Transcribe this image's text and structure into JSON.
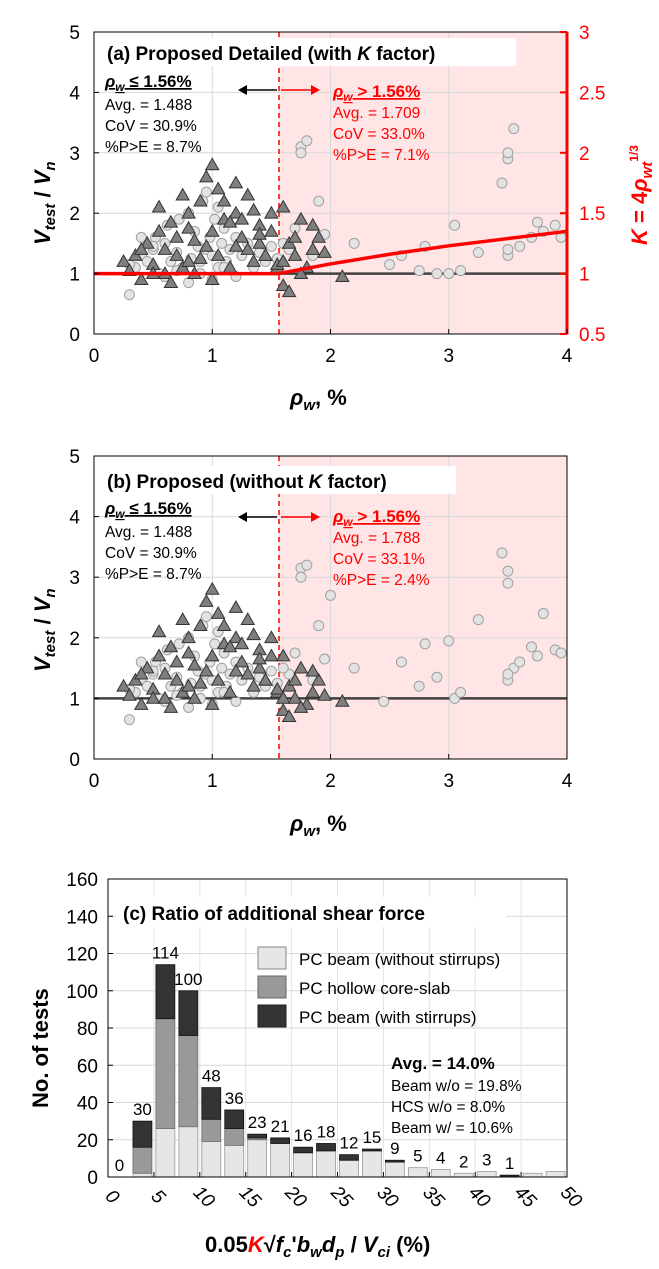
{
  "chart_data": [
    {
      "type": "scatter",
      "title": "(a) Proposed Detailed (with K factor)",
      "title_parts": {
        "prefix": "(a) Proposed Detailed (with ",
        "italic": "K",
        "suffix": " factor)"
      },
      "xlabel": "ρw, %",
      "ylabel": "Vtest / Vn",
      "y2label": "K = 4ρwt1/3",
      "xlim": [
        0,
        4
      ],
      "ylim": [
        0,
        5
      ],
      "y2lim": [
        0.5,
        3
      ],
      "xticks": [
        "0",
        "1",
        "2",
        "3",
        "4"
      ],
      "yticks": [
        "0",
        "1",
        "2",
        "3",
        "4",
        "5"
      ],
      "y2ticks": [
        "0.5",
        "1",
        "1.5",
        "2",
        "2.5",
        "3"
      ],
      "threshold_x": 1.56,
      "left_group": {
        "header": "ρw ≤ 1.56%",
        "avg": "Avg. = 1.488",
        "cov": "CoV = 30.9%",
        "pe": "%P>E = 8.7%"
      },
      "right_group": {
        "header": "ρw > 1.56%",
        "avg": "Avg. = 1.709",
        "cov": "CoV = 33.0%",
        "pe": "%P>E = 7.1%"
      },
      "k_curve": {
        "x": [
          0,
          1.56,
          2.0,
          2.5,
          3.0,
          3.5,
          4.0
        ],
        "y": [
          1,
          1,
          1.08,
          1.16,
          1.23,
          1.29,
          1.35
        ]
      },
      "series": [
        {
          "name": "PC beam (without stirrups)",
          "marker": "circle",
          "x": [
            0.3,
            0.35,
            0.4,
            0.45,
            0.5,
            0.52,
            0.55,
            0.6,
            0.62,
            0.65,
            0.7,
            0.72,
            0.75,
            0.8,
            0.82,
            0.85,
            0.88,
            0.9,
            0.92,
            0.95,
            0.98,
            1.0,
            1.02,
            1.05,
            1.08,
            1.1,
            1.12,
            1.15,
            1.2,
            1.25,
            1.3,
            1.35,
            1.4,
            1.45,
            1.5,
            1.55,
            0.6,
            0.7,
            0.8,
            0.9,
            1.0,
            1.1,
            1.2,
            0.4,
            0.5,
            0.3,
            0.95,
            1.05,
            1.75,
            1.8,
            1.9,
            1.95,
            1.7,
            1.65,
            1.6,
            1.75,
            1.85,
            2.2,
            2.5,
            2.6,
            2.75,
            2.8,
            2.9,
            3.0,
            3.05,
            3.1,
            3.25,
            3.45,
            3.5,
            3.5,
            3.55,
            3.6,
            3.7,
            3.75,
            3.8,
            3.9,
            3.95,
            3.5,
            3.5
          ],
          "y": [
            0.65,
            1.1,
            1.3,
            1.2,
            1.4,
            1.6,
            1.0,
            1.5,
            1.8,
            1.2,
            1.35,
            1.9,
            1.1,
            2.0,
            1.25,
            1.7,
            1.45,
            1.2,
            2.2,
            1.4,
            1.6,
            1.3,
            1.9,
            1.1,
            1.5,
            1.75,
            1.2,
            1.4,
            1.6,
            1.3,
            1.5,
            1.1,
            1.35,
            1.2,
            1.45,
            1.25,
            0.95,
            1.05,
            0.85,
            1.0,
            0.9,
            1.1,
            0.95,
            1.6,
            1.45,
            1.15,
            2.35,
            2.1,
            3.1,
            3.2,
            2.2,
            1.65,
            1.75,
            1.4,
            1.5,
            3.0,
            1.3,
            1.5,
            1.15,
            1.3,
            1.05,
            1.45,
            1.0,
            1.0,
            1.8,
            1.05,
            1.35,
            2.5,
            2.9,
            3.0,
            3.4,
            1.45,
            1.6,
            1.85,
            1.7,
            1.8,
            1.6,
            1.3,
            1.4
          ]
        },
        {
          "name": "PC beam (with stirrups)",
          "marker": "triangle",
          "x": [
            0.25,
            0.3,
            0.35,
            0.4,
            0.45,
            0.5,
            0.55,
            0.6,
            0.65,
            0.7,
            0.75,
            0.8,
            0.85,
            0.9,
            0.95,
            1.0,
            1.05,
            1.1,
            1.15,
            1.2,
            1.25,
            1.3,
            1.35,
            1.4,
            1.45,
            1.5,
            1.55,
            1.6,
            1.65,
            1.7,
            1.75,
            1.8,
            1.85,
            1.9,
            1.95,
            2.1,
            0.5,
            0.6,
            0.7,
            0.8,
            0.9,
            1.0,
            1.1,
            1.2,
            1.3,
            1.4,
            1.5,
            1.6,
            1.7,
            0.55,
            0.75,
            0.95,
            1.15,
            1.35,
            1.55,
            1.75,
            0.65,
            0.85,
            1.05,
            1.25,
            1.45,
            1.65,
            0.4,
            0.8,
            1.0,
            1.2,
            1.4,
            1.6,
            1.85
          ],
          "y": [
            1.2,
            1.05,
            1.3,
            0.9,
            1.5,
            1.15,
            1.7,
            1.0,
            1.85,
            1.3,
            1.1,
            2.0,
            1.55,
            1.25,
            2.6,
            1.7,
            1.3,
            2.2,
            1.1,
            2.5,
            1.6,
            2.3,
            1.2,
            1.8,
            1.3,
            2.0,
            1.1,
            2.1,
            1.5,
            1.3,
            1.9,
            1.1,
            1.4,
            1.6,
            1.35,
            0.95,
            1.0,
            1.4,
            1.6,
            1.75,
            2.2,
            2.8,
            1.9,
            2.0,
            1.4,
            1.5,
            1.7,
            0.8,
            1.6,
            2.1,
            2.3,
            1.45,
            1.85,
            2.05,
            1.15,
            1.0,
            0.85,
            1.0,
            2.4,
            1.9,
            1.3,
            0.7,
            1.4,
            1.2,
            0.9,
            1.45,
            1.65,
            1.2,
            1.8
          ]
        }
      ]
    },
    {
      "type": "scatter",
      "title": "(b) Proposed (without K factor)",
      "title_parts": {
        "prefix": "(b) Proposed (without ",
        "italic": "K",
        "suffix": " factor)"
      },
      "xlabel": "ρw, %",
      "ylabel": "Vtest / Vn",
      "xlim": [
        0,
        4
      ],
      "ylim": [
        0,
        5
      ],
      "xticks": [
        "0",
        "1",
        "2",
        "3",
        "4"
      ],
      "yticks": [
        "0",
        "1",
        "2",
        "3",
        "4",
        "5"
      ],
      "threshold_x": 1.56,
      "left_group": {
        "header": "ρw ≤ 1.56%",
        "avg": "Avg. = 1.488",
        "cov": "CoV = 30.9%",
        "pe": "%P>E = 8.7%"
      },
      "right_group": {
        "header": "ρw > 1.56%",
        "avg": "Avg. = 1.788",
        "cov": "CoV = 33.1%",
        "pe": "%P>E = 2.4%"
      },
      "series": [
        {
          "name": "PC beam (without stirrups)",
          "marker": "circle",
          "x": [
            0.3,
            0.35,
            0.4,
            0.45,
            0.5,
            0.52,
            0.55,
            0.6,
            0.62,
            0.65,
            0.7,
            0.72,
            0.75,
            0.8,
            0.82,
            0.85,
            0.88,
            0.9,
            0.92,
            0.95,
            0.98,
            1.0,
            1.02,
            1.05,
            1.08,
            1.1,
            1.12,
            1.15,
            1.2,
            1.25,
            1.3,
            1.35,
            1.4,
            1.45,
            1.5,
            1.55,
            0.6,
            0.7,
            0.8,
            0.9,
            1.0,
            1.1,
            1.2,
            0.4,
            0.5,
            0.3,
            0.95,
            1.05,
            1.75,
            1.8,
            1.9,
            1.95,
            1.7,
            1.65,
            1.6,
            1.75,
            1.85,
            2.2,
            2.45,
            2.6,
            2.75,
            2.8,
            2.9,
            3.0,
            3.05,
            3.1,
            3.25,
            3.45,
            3.5,
            3.5,
            3.55,
            3.6,
            3.7,
            3.75,
            3.8,
            3.9,
            3.95,
            3.5,
            3.5,
            2.0
          ],
          "y": [
            0.65,
            1.1,
            1.3,
            1.2,
            1.4,
            1.6,
            1.0,
            1.5,
            1.8,
            1.2,
            1.35,
            1.9,
            1.1,
            2.0,
            1.25,
            1.7,
            1.45,
            1.2,
            2.2,
            1.4,
            1.6,
            1.3,
            1.9,
            1.1,
            1.5,
            1.75,
            1.2,
            1.4,
            1.6,
            1.3,
            1.5,
            1.1,
            1.35,
            1.2,
            1.45,
            1.25,
            0.95,
            1.05,
            0.85,
            1.0,
            0.9,
            1.1,
            0.95,
            1.6,
            1.45,
            1.15,
            2.35,
            2.1,
            3.15,
            3.2,
            2.2,
            1.65,
            1.75,
            1.4,
            1.5,
            3.0,
            1.3,
            1.5,
            0.95,
            1.6,
            1.2,
            1.9,
            1.35,
            1.95,
            1.0,
            1.1,
            2.3,
            3.4,
            2.9,
            3.1,
            1.5,
            1.6,
            1.85,
            1.7,
            2.4,
            1.8,
            1.75,
            1.3,
            1.4,
            2.7
          ]
        },
        {
          "name": "PC beam (with stirrups)",
          "marker": "triangle",
          "x": [
            0.25,
            0.3,
            0.35,
            0.4,
            0.45,
            0.5,
            0.55,
            0.6,
            0.65,
            0.7,
            0.75,
            0.8,
            0.85,
            0.9,
            0.95,
            1.0,
            1.05,
            1.1,
            1.15,
            1.2,
            1.25,
            1.3,
            1.35,
            1.4,
            1.45,
            1.5,
            1.55,
            1.6,
            1.65,
            1.7,
            1.75,
            1.8,
            1.85,
            1.9,
            1.95,
            2.1,
            0.5,
            0.6,
            0.7,
            0.8,
            0.9,
            1.0,
            1.1,
            1.2,
            1.3,
            1.4,
            1.5,
            1.6,
            1.7,
            0.55,
            0.75,
            0.95,
            1.15,
            1.35,
            1.55,
            1.75,
            0.65,
            0.85,
            1.05,
            1.25,
            1.45,
            1.65,
            0.4,
            0.8,
            1.0,
            1.2,
            1.4,
            1.6,
            1.85
          ],
          "y": [
            1.2,
            1.05,
            1.3,
            0.9,
            1.5,
            1.15,
            1.7,
            1.0,
            1.85,
            1.3,
            1.1,
            2.0,
            1.55,
            1.25,
            2.6,
            1.7,
            1.3,
            2.2,
            1.1,
            2.5,
            1.6,
            2.3,
            1.2,
            1.8,
            1.3,
            2.0,
            1.1,
            1.7,
            1.2,
            1.0,
            1.5,
            0.9,
            1.1,
            1.3,
            1.05,
            0.95,
            1.0,
            1.4,
            1.6,
            1.75,
            2.2,
            2.8,
            1.9,
            2.0,
            1.4,
            1.5,
            1.7,
            0.8,
            1.3,
            2.1,
            2.3,
            1.45,
            1.85,
            2.05,
            1.15,
            0.85,
            0.85,
            1.0,
            2.4,
            1.9,
            1.3,
            0.7,
            1.4,
            1.2,
            0.9,
            1.45,
            1.65,
            1.0,
            1.45
          ]
        }
      ]
    },
    {
      "type": "bar",
      "stacked": true,
      "title": "(c) Ratio of additional shear force",
      "xlabel": "0.05K√fc'bwdp / Vci (%)",
      "ylabel": "No. of tests",
      "xlim": [
        0,
        50
      ],
      "ylim": [
        0,
        160
      ],
      "xticks": [
        "0",
        "5",
        "10",
        "15",
        "20",
        "25",
        "30",
        "35",
        "40",
        "45",
        "50"
      ],
      "yticks": [
        "0",
        "20",
        "40",
        "60",
        "80",
        "100",
        "120",
        "140",
        "160"
      ],
      "bin_start": [
        0,
        2.5,
        5,
        7.5,
        10,
        12.5,
        15,
        17.5,
        20,
        22.5,
        25,
        27.5,
        30,
        32.5,
        35,
        37.5,
        40,
        42.5,
        45,
        47.5
      ],
      "bin_width": 2.5,
      "totals": [
        0,
        30,
        114,
        100,
        48,
        36,
        23,
        21,
        16,
        18,
        12,
        15,
        9,
        5,
        4,
        2,
        3,
        1,
        null,
        null
      ],
      "total_labels": [
        "0",
        "30",
        "114",
        "100",
        "48",
        "36",
        "23",
        "21",
        "16",
        "18",
        "12",
        "15",
        "9",
        "5",
        "4",
        "2",
        "3",
        "1",
        "",
        ""
      ],
      "series": [
        {
          "name": "PC beam (without stirrups)",
          "color": "#e6e6e6",
          "values": [
            0,
            2,
            26,
            27,
            19,
            17,
            20,
            18,
            13,
            14,
            9,
            14,
            8,
            5,
            4,
            2,
            3,
            0,
            2,
            3
          ]
        },
        {
          "name": "PC hollow core-slab",
          "color": "#999999",
          "values": [
            0,
            14,
            59,
            49,
            12,
            9,
            1,
            0,
            0,
            0,
            0,
            0,
            0,
            0,
            0,
            0,
            0,
            0,
            0,
            0
          ]
        },
        {
          "name": "PC beam (with stirrups)",
          "color": "#333333",
          "values": [
            0,
            14,
            29,
            24,
            17,
            10,
            2,
            3,
            3,
            4,
            3,
            1,
            1,
            0,
            0,
            0,
            0,
            1,
            0,
            0
          ]
        }
      ],
      "stats": {
        "avg": "Avg. = 14.0%",
        "beam_wo": "Beam w/o = 19.8%",
        "hcs_wo": "HCS w/o = 8.0%",
        "beam_w": "Beam w/ = 10.6%"
      }
    }
  ]
}
